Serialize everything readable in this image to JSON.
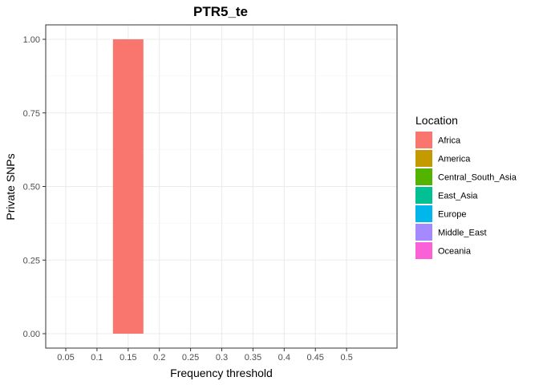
{
  "chart_data": {
    "type": "bar",
    "title": "PTR5_te",
    "xlabel": "Frequency threshold",
    "ylabel": "Private SNPs",
    "x_ticks": [
      "0.05",
      "0.1",
      "0.15",
      "0.2",
      "0.25",
      "0.3",
      "0.35",
      "0.4",
      "0.45",
      "0.5"
    ],
    "y_ticks": [
      "0.00",
      "0.25",
      "0.50",
      "0.75",
      "1.00"
    ],
    "ylim": [
      0,
      1
    ],
    "grid": true,
    "legend_position": "right",
    "legend": {
      "title": "Location",
      "items": [
        {
          "name": "Africa",
          "color": "#F8766D"
        },
        {
          "name": "America",
          "color": "#C49A00"
        },
        {
          "name": "Central_South_Asia",
          "color": "#53B400"
        },
        {
          "name": "East_Asia",
          "color": "#00C094"
        },
        {
          "name": "Europe",
          "color": "#00B6EB"
        },
        {
          "name": "Middle_East",
          "color": "#A58AFF"
        },
        {
          "name": "Oceania",
          "color": "#FB61D7"
        }
      ]
    },
    "bars": [
      {
        "x": "0.15",
        "location": "Africa",
        "value": 1.0
      }
    ]
  }
}
